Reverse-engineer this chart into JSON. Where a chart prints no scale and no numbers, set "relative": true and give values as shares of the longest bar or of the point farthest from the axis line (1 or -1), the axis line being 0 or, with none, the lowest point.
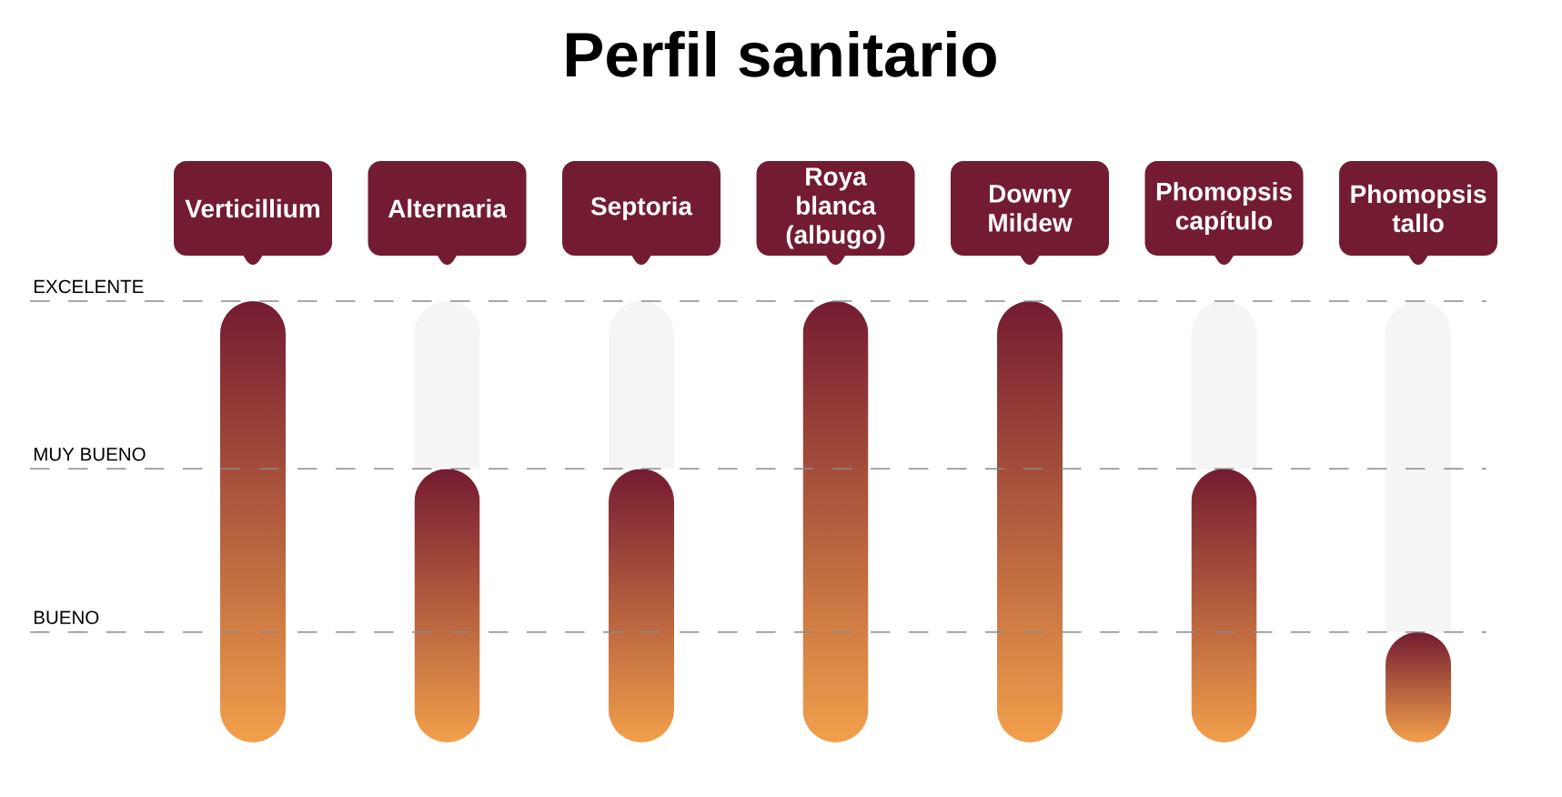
{
  "chart_data": {
    "type": "bar",
    "title": "Perfil sanitario",
    "categories": [
      "Verticillium",
      "Alternaria",
      "Septoria",
      "Roya blanca (albugo)",
      "Downy Mildew",
      "Phomopsis capítulo",
      "Phomopsis tallo"
    ],
    "stacked": true,
    "relative": true,
    "series": [
      {
        "color": "#741b31",
        "values": [
          1,
          0.62,
          0.62,
          1,
          1,
          0.62,
          0.25
        ]
      },
      {
        "color": "#f5f5f5",
        "values": [
          null,
          0.38,
          0.38,
          null,
          null,
          0.38,
          0.75
        ]
      }
    ],
    "ref_lines": [
      {
        "axis": "y",
        "value": 1,
        "label": "EXCELENTE",
        "color": "#8a8a8a",
        "line_style": "dashed"
      },
      {
        "axis": "y",
        "value": 0.62,
        "label": "MUY BUENO",
        "color": "#8a8a8a",
        "line_style": "dashed"
      },
      {
        "axis": "y",
        "value": 0.25,
        "label": "BUENO",
        "color": "#8a8a8a",
        "line_style": "dashed"
      }
    ]
  }
}
